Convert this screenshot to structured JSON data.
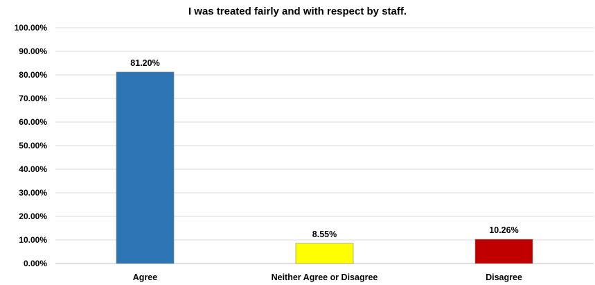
{
  "chart_data": {
    "type": "bar",
    "title": "I was treated fairly and with respect by staff.",
    "categories": [
      "Agree",
      "Neither Agree or Disagree",
      "Disagree"
    ],
    "values": [
      81.2,
      8.55,
      10.26
    ],
    "value_labels": [
      "81.20%",
      "8.55%",
      "10.26%"
    ],
    "colors": [
      "#2E75B6",
      "#FFFF00",
      "#C00000"
    ],
    "ylim": [
      0,
      100
    ],
    "y_ticks": [
      0,
      10,
      20,
      30,
      40,
      50,
      60,
      70,
      80,
      90,
      100
    ],
    "y_tick_labels": [
      "0.00%",
      "10.00%",
      "20.00%",
      "30.00%",
      "40.00%",
      "50.00%",
      "60.00%",
      "70.00%",
      "80.00%",
      "90.00%",
      "100.00%"
    ],
    "grid": true,
    "legend": false,
    "xlabel": "",
    "ylabel": ""
  }
}
